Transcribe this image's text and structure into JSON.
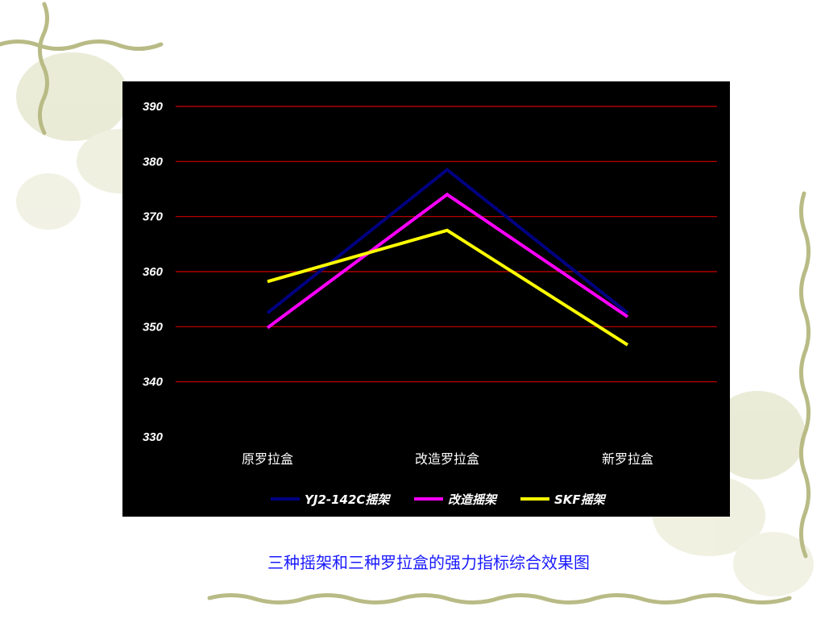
{
  "caption": "三种摇架和三种罗拉盒的强力指标综合效果图",
  "chart_data": {
    "type": "line",
    "categories": [
      "原罗拉盒",
      "改造罗拉盒",
      "新罗拉盒"
    ],
    "series": [
      {
        "name": "YJ2-142C摇架",
        "color": "#000080",
        "values": [
          352.5,
          378.5,
          352.5
        ]
      },
      {
        "name": "改造摇架",
        "color": "#ff00ff",
        "values": [
          349.8,
          374.0,
          351.8
        ]
      },
      {
        "name": "SKF摇架",
        "color": "#ffff00",
        "values": [
          358.2,
          367.5,
          346.7
        ]
      }
    ],
    "y_ticks": [
      330,
      340,
      350,
      360,
      370,
      380,
      390
    ],
    "ylim": [
      330,
      390
    ],
    "grid": true,
    "grid_color": "#cc0000",
    "background": "#000000",
    "legend_position": "bottom"
  }
}
